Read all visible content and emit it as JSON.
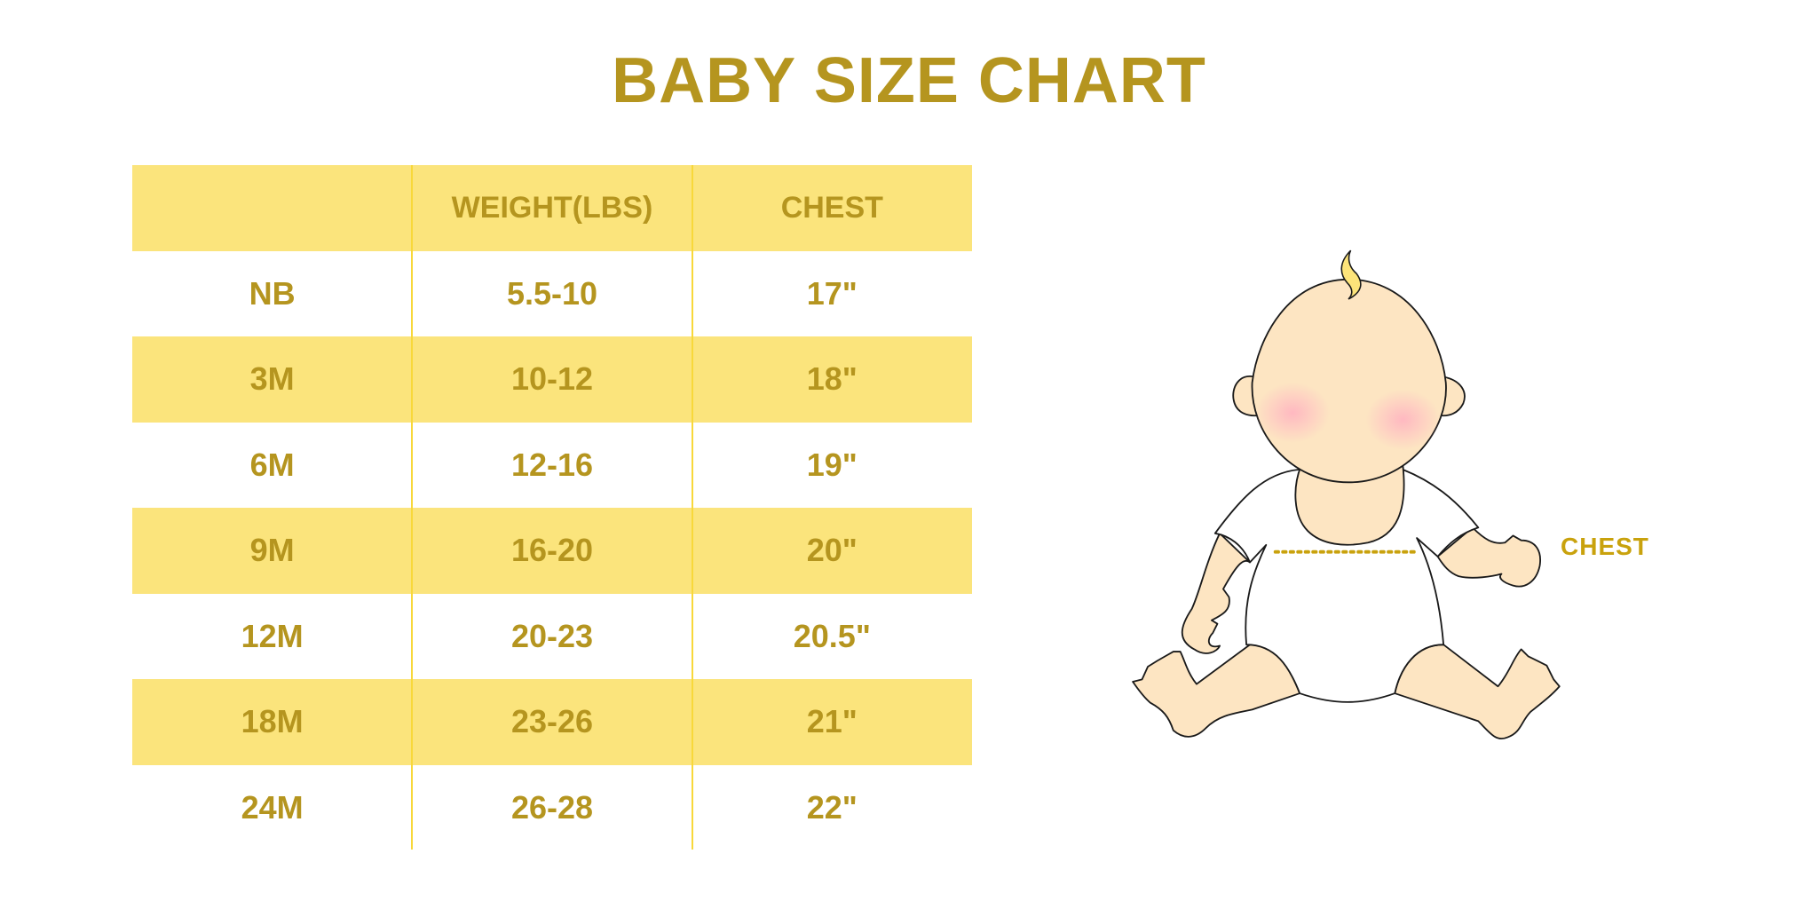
{
  "title": "BABY SIZE CHART",
  "table": {
    "headers": [
      "",
      "WEIGHT(LBS)",
      "CHEST"
    ],
    "rows": [
      {
        "size": "NB",
        "weight": "5.5-10",
        "chest": "17\""
      },
      {
        "size": "3M",
        "weight": "10-12",
        "chest": "18\""
      },
      {
        "size": "6M",
        "weight": "12-16",
        "chest": "19\""
      },
      {
        "size": "9M",
        "weight": "16-20",
        "chest": "20\""
      },
      {
        "size": "12M",
        "weight": "20-23",
        "chest": "20.5\""
      },
      {
        "size": "18M",
        "weight": "23-26",
        "chest": "21\""
      },
      {
        "size": "24M",
        "weight": "26-28",
        "chest": "22\""
      }
    ]
  },
  "illustration": {
    "chest_label": "CHEST"
  },
  "colors": {
    "text": "#b5951f",
    "band": "#fbe47c",
    "divider": "#f8d83a"
  }
}
